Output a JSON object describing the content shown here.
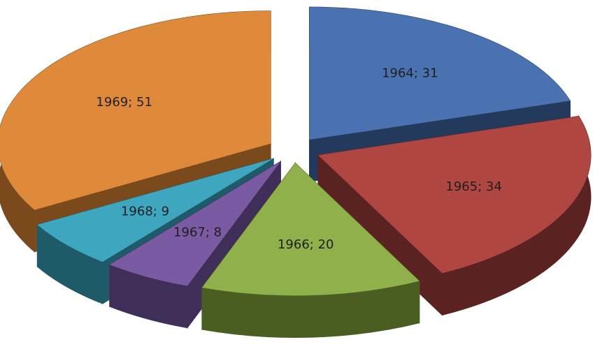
{
  "chart_data": {
    "type": "pie",
    "style": "3d-exploded",
    "title": "",
    "legend": "none",
    "label_format": "category; value",
    "slices": [
      {
        "category": "1964",
        "value": 31,
        "label": "1964; 31",
        "color": "#4a72b0",
        "side_color": "#233a5c"
      },
      {
        "category": "1965",
        "value": 34,
        "label": "1965; 34",
        "color": "#b04642",
        "side_color": "#5a2220"
      },
      {
        "category": "1966",
        "value": 20,
        "label": "1966; 20",
        "color": "#8fb04a",
        "side_color": "#4a5e22"
      },
      {
        "category": "1967",
        "value": 8,
        "label": "1967; 8",
        "color": "#7a5aa3",
        "side_color": "#3f2e58"
      },
      {
        "category": "1968",
        "value": 9,
        "label": "1968; 9",
        "color": "#3fa6c0",
        "side_color": "#1f5a68"
      },
      {
        "category": "1969",
        "value": 51,
        "label": "1969; 51",
        "color": "#de8a3a",
        "side_color": "#7a4a1c"
      }
    ]
  }
}
